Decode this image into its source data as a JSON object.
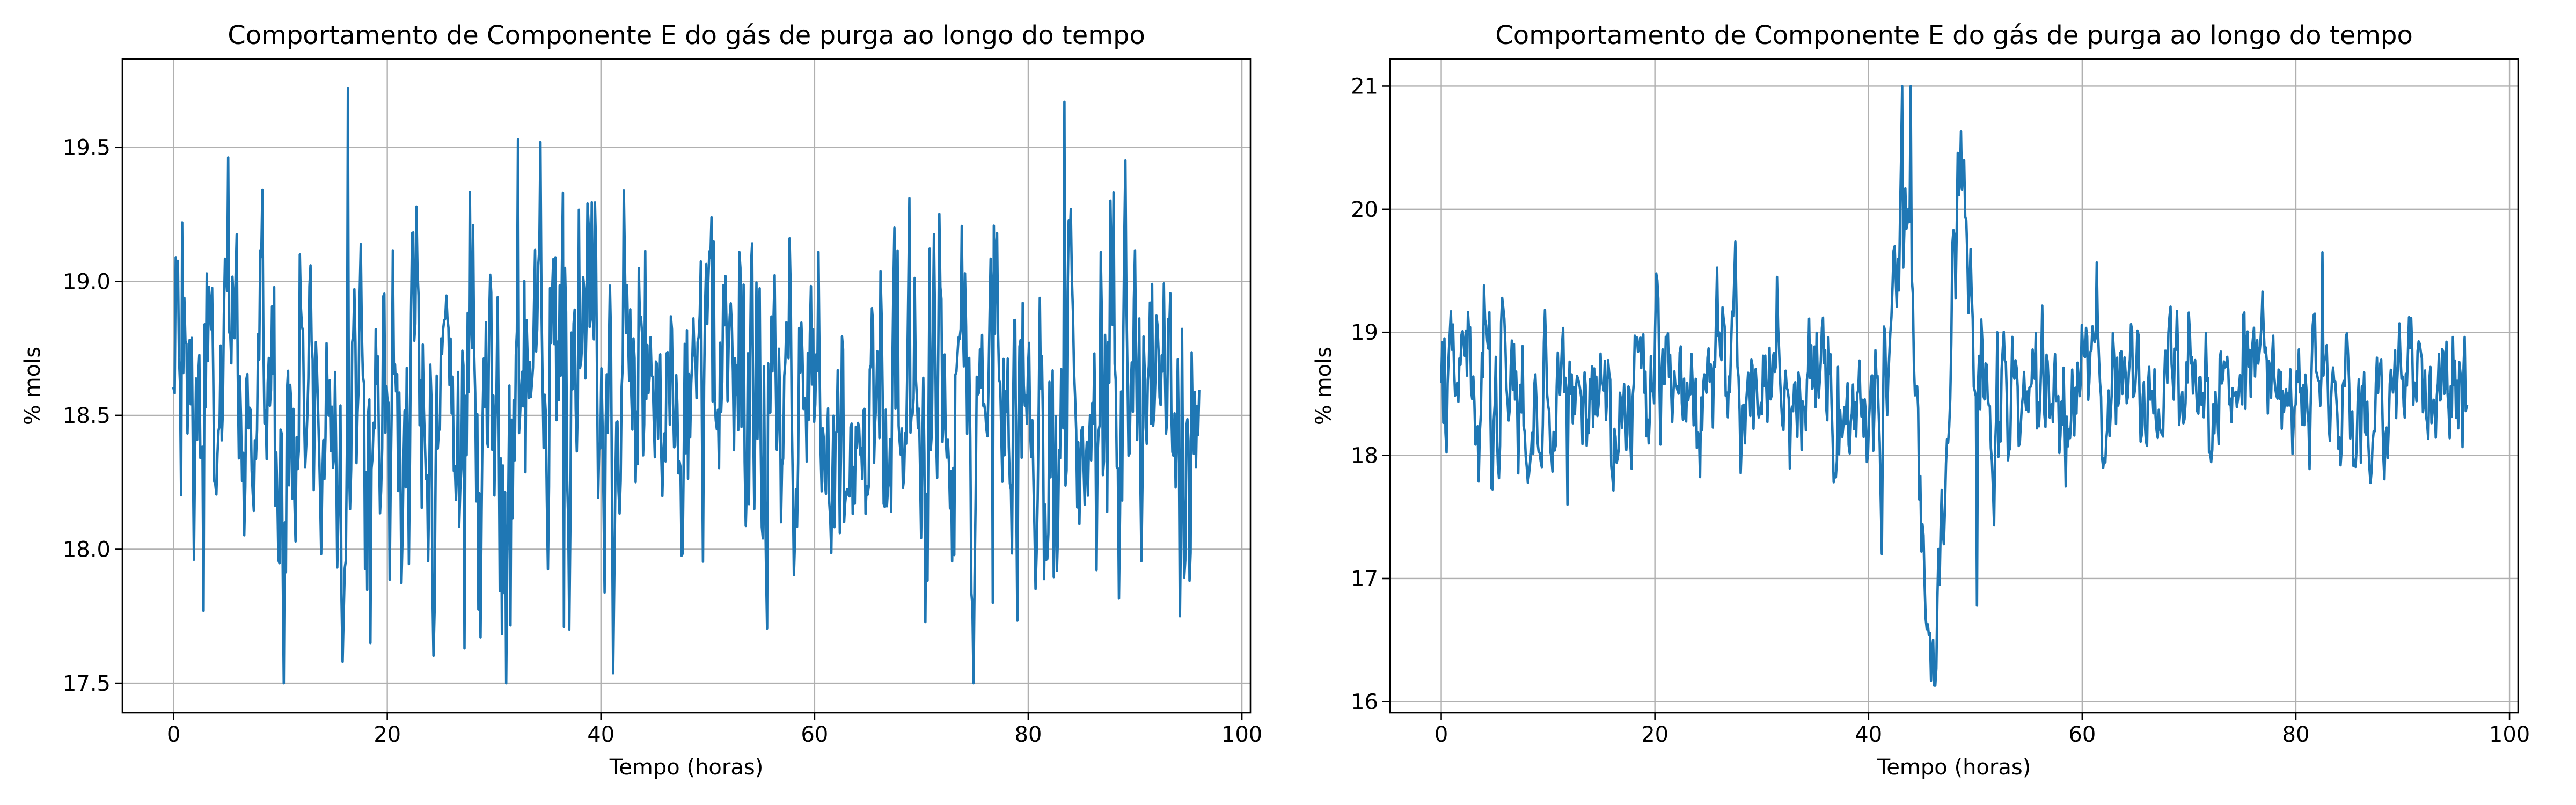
{
  "chart_data": [
    {
      "type": "line",
      "title": "Comportamento de Componente E do gás de purga ao longo do tempo",
      "xlabel": "Tempo (horas)",
      "ylabel": "% mols",
      "xlim": [
        -4.8,
        100.8
      ],
      "ylim": [
        17.39,
        19.83
      ],
      "xticks": [
        0,
        20,
        40,
        60,
        80,
        100
      ],
      "yticks": [
        17.5,
        18.0,
        18.5,
        19.0,
        19.5
      ],
      "ytick_labels": [
        "17.5",
        "18.0",
        "18.5",
        "19.0",
        "19.5"
      ],
      "grid": true,
      "line_color": "#1f77b4",
      "x_range": [
        0,
        96
      ],
      "points_per_series": 960,
      "key_points": [
        {
          "x": 0,
          "y": 18.6
        },
        {
          "x": 0.8,
          "y": 19.22
        },
        {
          "x": 2.8,
          "y": 17.77
        },
        {
          "x": 16.3,
          "y": 19.72
        },
        {
          "x": 18.4,
          "y": 17.65
        },
        {
          "x": 27.2,
          "y": 17.63
        },
        {
          "x": 31.1,
          "y": 17.5
        },
        {
          "x": 32.2,
          "y": 19.53
        },
        {
          "x": 36.5,
          "y": 17.71
        },
        {
          "x": 83.4,
          "y": 19.67
        },
        {
          "x": 76.7,
          "y": 17.8
        },
        {
          "x": 94.2,
          "y": 17.75
        },
        {
          "x": 96,
          "y": 18.59
        }
      ]
    },
    {
      "type": "line",
      "title": "Comportamento de Componente E do gás de purga ao longo do tempo",
      "xlabel": "Tempo (horas)",
      "ylabel": "% mols",
      "xlim": [
        -4.8,
        100.8
      ],
      "ylim": [
        15.91,
        21.22
      ],
      "xticks": [
        0,
        20,
        40,
        60,
        80,
        100
      ],
      "yticks": [
        16,
        17,
        18,
        19,
        20,
        21
      ],
      "ytick_labels": [
        "16",
        "17",
        "18",
        "19",
        "20",
        "21"
      ],
      "grid": true,
      "line_color": "#1f77b4",
      "x_range": [
        0,
        96
      ],
      "points_per_series": 960,
      "key_points": [
        {
          "x": 0,
          "y": 18.6
        },
        {
          "x": 0.3,
          "y": 18.95
        },
        {
          "x": 4.0,
          "y": 19.38
        },
        {
          "x": 11.8,
          "y": 17.6
        },
        {
          "x": 41.2,
          "y": 17.2
        },
        {
          "x": 43.1,
          "y": 21.0
        },
        {
          "x": 43.9,
          "y": 21.0
        },
        {
          "x": 46.1,
          "y": 16.13
        },
        {
          "x": 48.7,
          "y": 20.63
        },
        {
          "x": 50.2,
          "y": 16.78
        },
        {
          "x": 52.1,
          "y": 19.0
        },
        {
          "x": 82.5,
          "y": 19.65
        },
        {
          "x": 96,
          "y": 18.4
        }
      ]
    }
  ]
}
